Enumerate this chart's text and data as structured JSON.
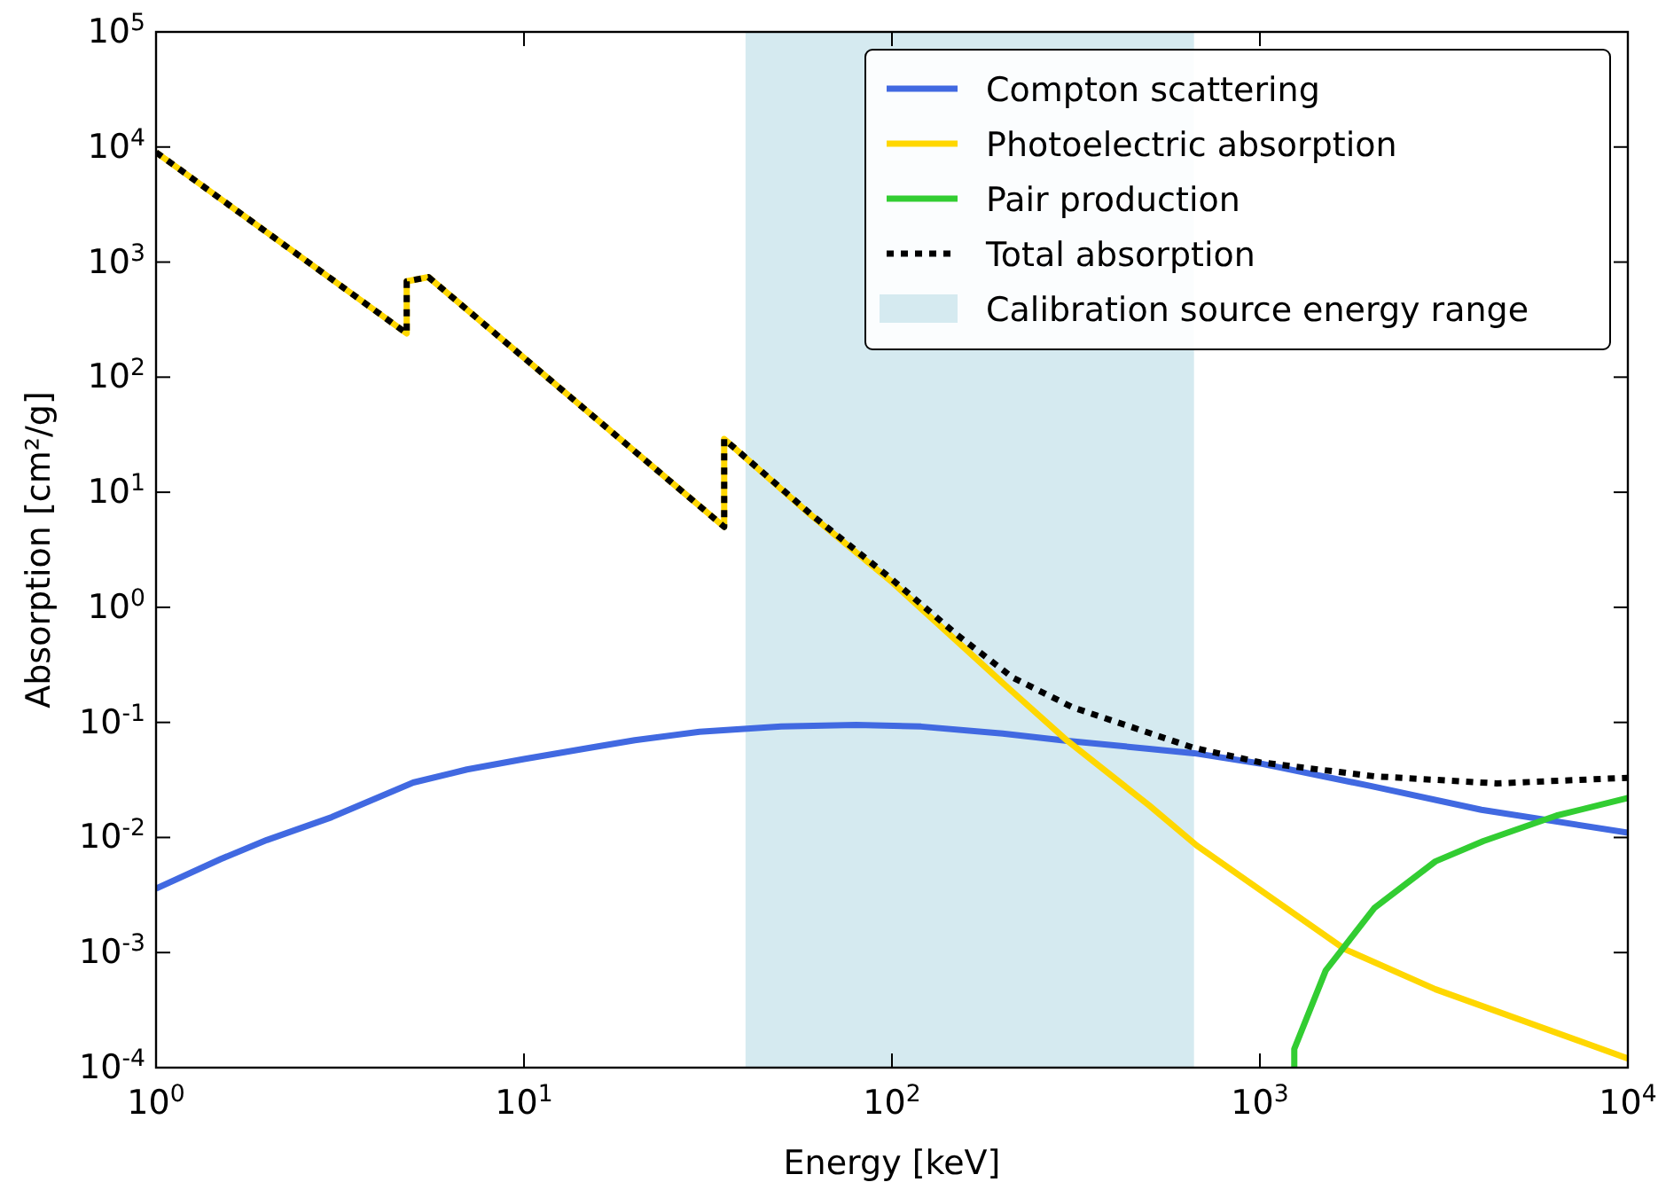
{
  "chart_data": {
    "type": "line",
    "xlabel": "Energy [keV]",
    "ylabel": "Absorption [cm²/g]",
    "log": "xy",
    "xlim": [
      1,
      10000
    ],
    "ylim": [
      0.0001,
      100000
    ],
    "xticks": [
      {
        "value": 1,
        "label": "10$^{0}$"
      },
      {
        "value": 10,
        "label": "10$^{1}$"
      },
      {
        "value": 100,
        "label": "10$^{2}$"
      },
      {
        "value": 1000,
        "label": "10$^{3}$"
      },
      {
        "value": 10000,
        "label": "10$^{4}$"
      }
    ],
    "yticks": [
      {
        "value": 0.0001,
        "label": "10$^{-4}$"
      },
      {
        "value": 0.001,
        "label": "10$^{-3}$"
      },
      {
        "value": 0.01,
        "label": "10$^{-2}$"
      },
      {
        "value": 0.1,
        "label": "10$^{-1}$"
      },
      {
        "value": 1,
        "label": "10$^{0}$"
      },
      {
        "value": 10,
        "label": "10$^{1}$"
      },
      {
        "value": 100,
        "label": "10$^{2}$"
      },
      {
        "value": 1000,
        "label": "10$^{3}$"
      },
      {
        "value": 10000,
        "label": "10$^{4}$"
      },
      {
        "value": 100000,
        "label": "10$^{5}$"
      }
    ],
    "grid": false,
    "legend": "top right",
    "series": [
      {
        "name": "Compton scattering",
        "color": "#4169e1",
        "line_style": "solid",
        "x": [
          1,
          1.5,
          2,
          3,
          5,
          7,
          10,
          15,
          20,
          30,
          50,
          80,
          120,
          200,
          300,
          500,
          662,
          1000,
          2000,
          4000,
          10000
        ],
        "values": [
          0.0036,
          0.0065,
          0.0095,
          0.015,
          0.03,
          0.039,
          0.048,
          0.06,
          0.07,
          0.083,
          0.092,
          0.095,
          0.092,
          0.08,
          0.069,
          0.059,
          0.054,
          0.044,
          0.028,
          0.0174,
          0.011
        ]
      },
      {
        "name": "Photoelectric absorption",
        "color": "#ffd700",
        "line_style": "solid",
        "x": [
          1,
          4.8,
          4.8,
          5.5,
          35,
          35,
          60,
          100,
          150,
          200,
          300,
          500,
          674,
          1700,
          3000,
          10000
        ],
        "values": [
          9000,
          240,
          680,
          740,
          5,
          29,
          6.4,
          1.66,
          0.51,
          0.22,
          0.069,
          0.019,
          0.0085,
          0.00107,
          0.00048,
          0.00012
        ]
      },
      {
        "name": "Pair production",
        "color": "#32cd32",
        "line_style": "solid",
        "x": [
          1240,
          1240,
          1510,
          2050,
          3000,
          4050,
          6400,
          10000
        ],
        "values": [
          0.0001,
          0.000145,
          0.0007,
          0.00245,
          0.0062,
          0.0093,
          0.0155,
          0.022
        ]
      },
      {
        "name": "Total absorption",
        "color": "#000000",
        "line_style": "dotted",
        "x": [
          1,
          4.8,
          4.8,
          5.5,
          35,
          35,
          60,
          100,
          150,
          213,
          310,
          662,
          1000,
          2050,
          4400,
          10000
        ],
        "values": [
          9000,
          240,
          680,
          740,
          5,
          29,
          6.5,
          1.75,
          0.58,
          0.245,
          0.135,
          0.06,
          0.045,
          0.034,
          0.0295,
          0.033
        ]
      }
    ],
    "bands": [
      {
        "axis": "x",
        "from": 40,
        "to": 662,
        "label": "Calibration source energy range",
        "color": "#d5eaf0"
      }
    ]
  }
}
